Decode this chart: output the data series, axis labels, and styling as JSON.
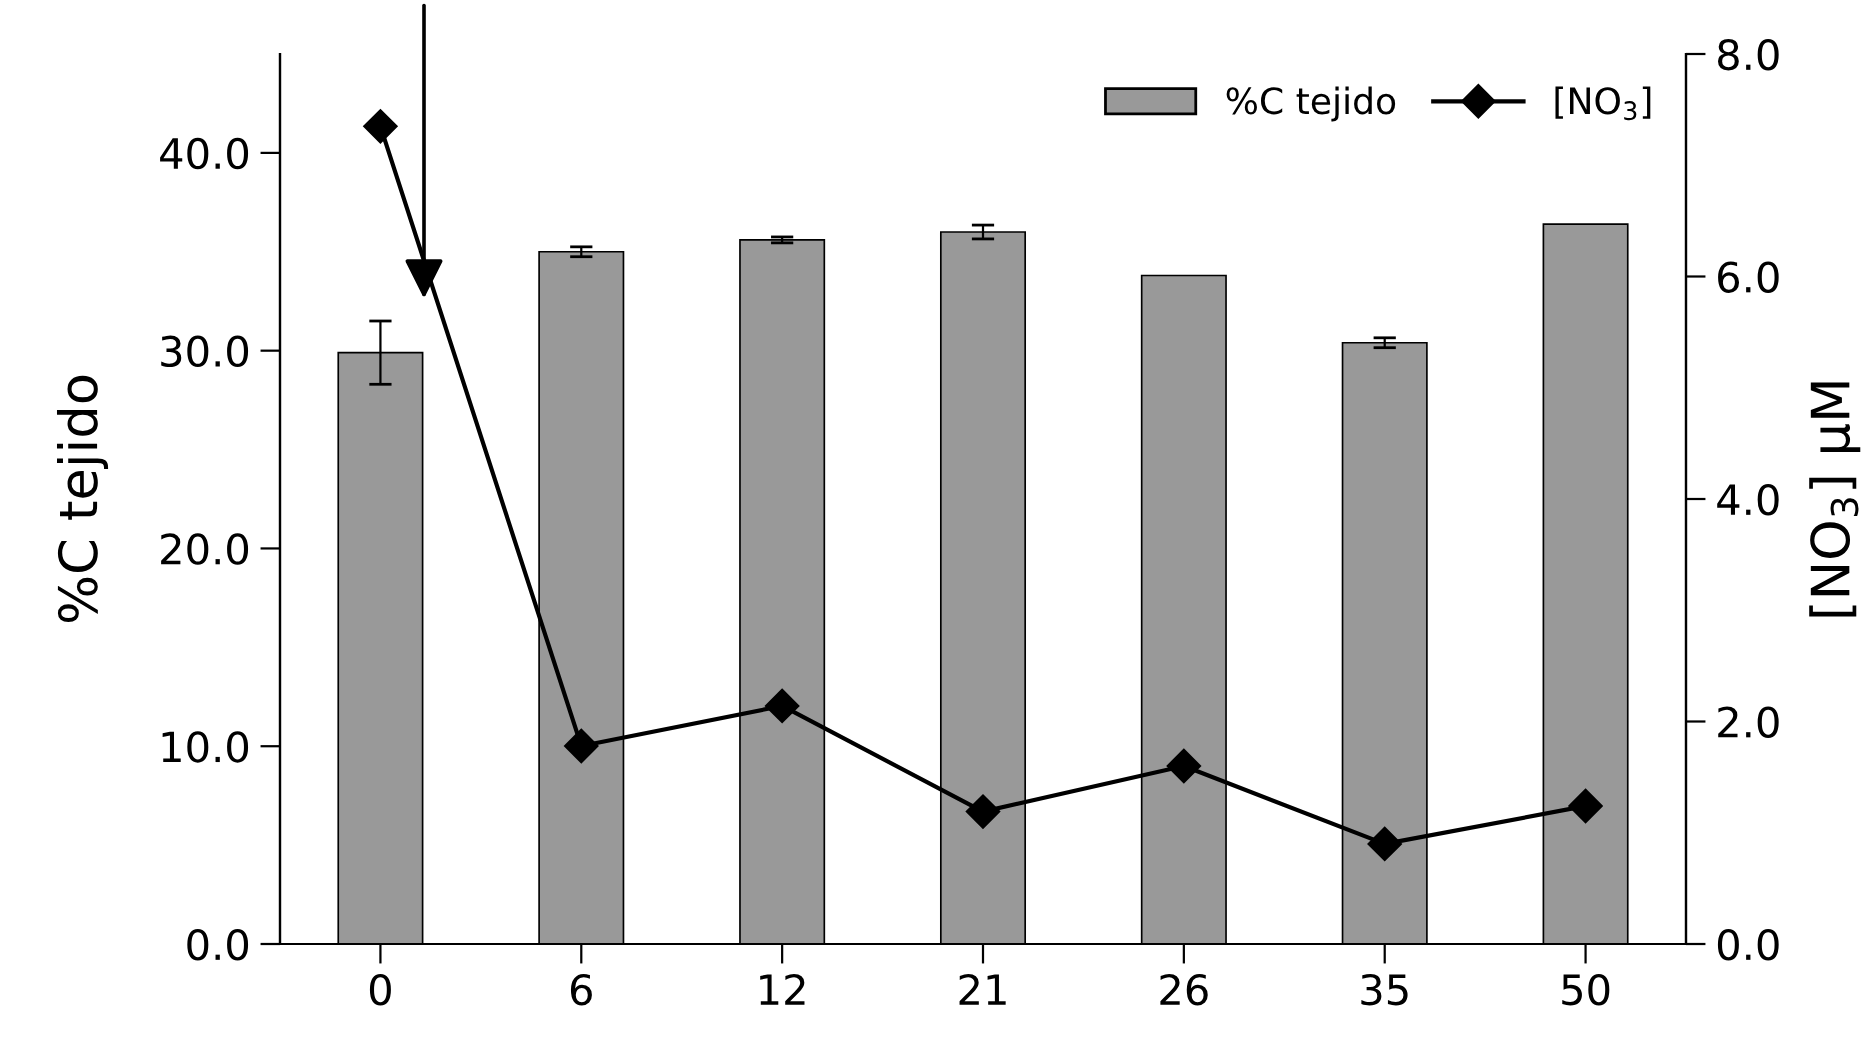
{
  "chart_data": {
    "type": "bar",
    "categories": [
      "0",
      "6",
      "12",
      "21",
      "26",
      "35",
      "50"
    ],
    "ylabel": "%C tejido",
    "y2label": "[NO$_{3}$] µM",
    "series": [
      {
        "name": "%C tejido",
        "color": "#999999",
        "values": [
          29.9,
          35.0,
          35.6,
          36.0,
          33.8,
          30.4,
          36.4
        ],
        "errors": [
          1.6,
          0.25,
          0.15,
          0.35,
          null,
          0.25,
          null
        ]
      },
      {
        "name": "[NO$_{3}$]",
        "type": "line",
        "axis": "y2",
        "color": "#000000",
        "marker": "diamond",
        "line_style": "solid",
        "values": [
          7.35,
          1.78,
          2.14,
          1.19,
          1.6,
          0.9,
          1.24
        ]
      }
    ],
    "ylim": [
      0,
      45
    ],
    "yticks": [
      {
        "value": 0,
        "label": "0.0"
      },
      {
        "value": 10,
        "label": "10.0"
      },
      {
        "value": 20,
        "label": "20.0"
      },
      {
        "value": 30,
        "label": "30.0"
      },
      {
        "value": 40,
        "label": "40.0"
      }
    ],
    "y2lim": [
      0,
      8
    ],
    "y2ticks": [
      {
        "value": 0,
        "label": "0.0"
      },
      {
        "value": 2,
        "label": "2.0"
      },
      {
        "value": 4,
        "label": "4.0"
      },
      {
        "value": 6,
        "label": "6.0"
      },
      {
        "value": 8,
        "label": "8.0"
      }
    ],
    "legend": "top right",
    "grid": false
  }
}
